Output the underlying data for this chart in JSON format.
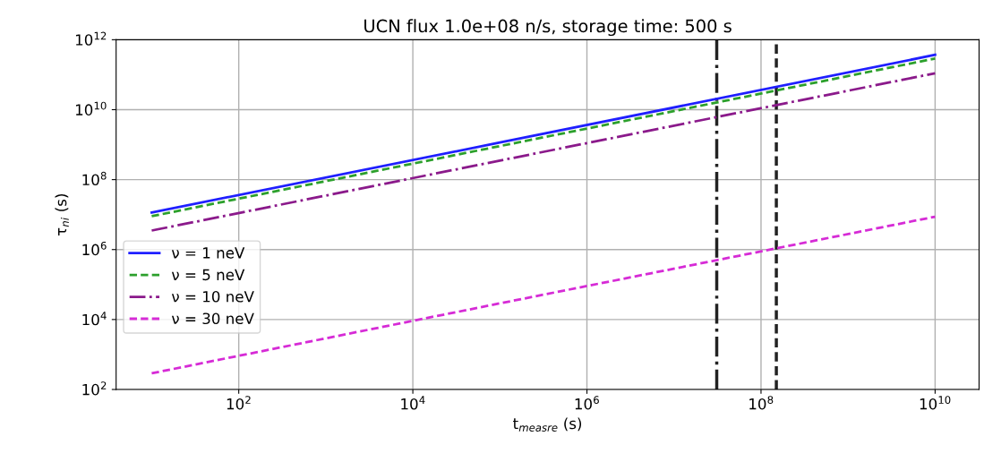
{
  "chart_data": {
    "type": "line",
    "title": "UCN flux 1.0e+08 n/s, storage time: 500 s",
    "xlabel": "t$_{measre}$ (s)",
    "ylabel": "τ$_{ni}$ (s)",
    "log": "xy",
    "grid": true,
    "legend": "bottom left",
    "xlim": [
      3.9,
      32000000000.0
    ],
    "ylim": [
      100,
      1000000000000.0
    ],
    "xticks": [
      {
        "value": 100,
        "label": "10$^{2}$"
      },
      {
        "value": 10000,
        "label": "10$^{4}$"
      },
      {
        "value": 1000000,
        "label": "10$^{6}$"
      },
      {
        "value": 100000000,
        "label": "10$^{8}$"
      },
      {
        "value": 10000000000,
        "label": "10$^{10}$"
      }
    ],
    "yticks": [
      {
        "value": 100,
        "label": "10$^{2}$"
      },
      {
        "value": 10000,
        "label": "10$^{4}$"
      },
      {
        "value": 1000000,
        "label": "10$^{6}$"
      },
      {
        "value": 100000000,
        "label": "10$^{8}$"
      },
      {
        "value": 10000000000,
        "label": "10$^{10}$"
      },
      {
        "value": 1000000000000,
        "label": "10$^{12}$"
      }
    ],
    "series": [
      {
        "name": "ν = 1 neV",
        "color": "#1f1fff",
        "line_style": "solid",
        "x": [
          10,
          100000,
          10000000000
        ],
        "values": [
          11500000,
          1150000000,
          370000000000
        ]
      },
      {
        "name": "ν = 5 neV",
        "color": "#2ca02c",
        "line_style": "dashed",
        "x": [
          10,
          100000,
          10000000000
        ],
        "values": [
          9000000,
          910000000,
          290000000000
        ]
      },
      {
        "name": "ν = 10 neV",
        "color": "#8b1a8b",
        "line_style": "dashdot",
        "x": [
          10,
          100000,
          10000000000
        ],
        "values": [
          3500000,
          350000000,
          110000000000
        ]
      },
      {
        "name": "ν = 30 neV",
        "color": "#d62bd6",
        "line_style": "dashed",
        "x": [
          10,
          100000,
          10000000000
        ],
        "values": [
          290,
          29000,
          8700000
        ]
      }
    ],
    "ref_lines": [
      {
        "axis": "x",
        "value": 31000000,
        "color": "#222222",
        "line_style": "dashdot"
      },
      {
        "axis": "x",
        "value": 150000000,
        "color": "#222222",
        "line_style": "dashed"
      }
    ]
  }
}
